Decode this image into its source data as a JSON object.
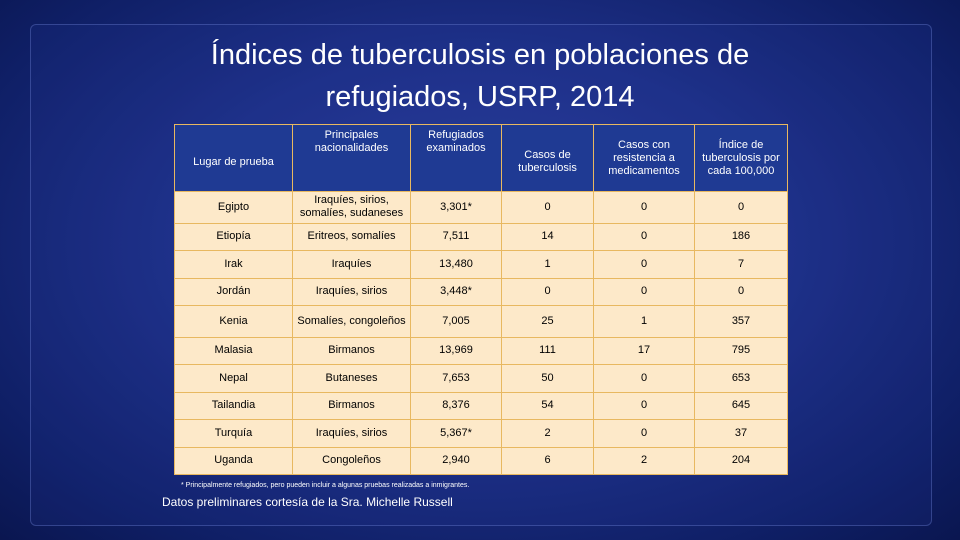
{
  "slide": {
    "title_line1": "Índices de tuberculosis en poblaciones de",
    "title_line2": "refugiados, USRP, 2014",
    "footnote": "* Principalmente refugiados, pero pueden incluir a algunas pruebas realizadas a inmigrantes.",
    "credit": "Datos preliminares cortesía de la Sra. Michelle Russell"
  },
  "colors": {
    "header_bg": "#1f3a93",
    "cell_bg": "#fde9c9",
    "border": "#e8b860",
    "background": "#1d2f86"
  },
  "table": {
    "headers": [
      "Lugar de prueba",
      "Principales nacionalidades",
      "Refugiados examinados",
      "Casos de tuberculosis",
      "Casos con resistencia a medicamentos",
      "Índice de tuberculosis por cada 100,000"
    ],
    "rows": [
      [
        "Egipto",
        "Iraquíes, sirios, somalíes, sudaneses",
        "3,301*",
        "0",
        "0",
        "0"
      ],
      [
        "Etiopía",
        "Eritreos, somalíes",
        "7,511",
        "14",
        "0",
        "186"
      ],
      [
        "Irak",
        "Iraquíes",
        "13,480",
        "1",
        "0",
        "7"
      ],
      [
        "Jordán",
        "Iraquíes, sirios",
        "3,448*",
        "0",
        "0",
        "0"
      ],
      [
        "Kenia",
        "Somalíes, congoleños",
        "7,005",
        "25",
        "1",
        "357"
      ],
      [
        "Malasia",
        "Birmanos",
        "13,969",
        "111",
        "17",
        "795"
      ],
      [
        "Nepal",
        "Butaneses",
        "7,653",
        "50",
        "0",
        "653"
      ],
      [
        "Tailandia",
        "Birmanos",
        "8,376",
        "54",
        "0",
        "645"
      ],
      [
        "Turquía",
        "Iraquíes, sirios",
        "5,367*",
        "2",
        "0",
        "37"
      ],
      [
        "Uganda",
        "Congoleños",
        "2,940",
        "6",
        "2",
        "204"
      ]
    ]
  }
}
